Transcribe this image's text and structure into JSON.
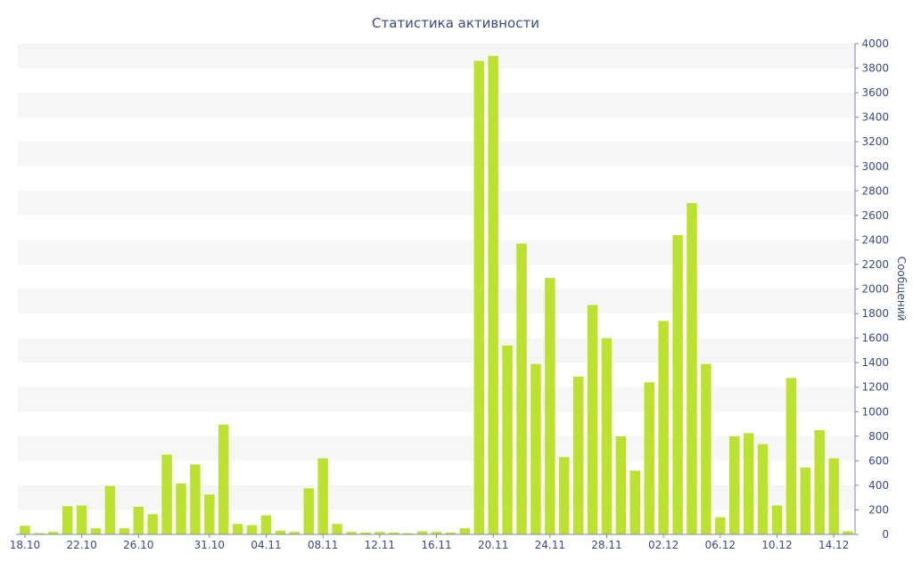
{
  "chart_data": {
    "type": "bar",
    "title": "Статистика активности",
    "ylabel": "Сообщений",
    "xlabel": "",
    "ylim": [
      0,
      4000
    ],
    "yticks": [
      0,
      200,
      400,
      600,
      800,
      1000,
      1200,
      1400,
      1600,
      1800,
      2000,
      2200,
      2400,
      2600,
      2800,
      3000,
      3200,
      3400,
      3600,
      3800,
      4000
    ],
    "y_axis_position": "right",
    "grid": "alternating horizontal bands",
    "legend": "none",
    "colors": {
      "bar": "#bce22f",
      "text": "#3b4a8a",
      "band": "#f6f6f6"
    },
    "xtick_labels": [
      "18.10",
      "22.10",
      "26.10",
      "31.10",
      "04.11",
      "08.11",
      "12.11",
      "16.11",
      "20.11",
      "24.11",
      "28.11",
      "02.12",
      "06.12",
      "10.12",
      "14.12"
    ],
    "values": [
      70,
      10,
      20,
      230,
      235,
      50,
      395,
      50,
      225,
      165,
      650,
      415,
      570,
      325,
      895,
      85,
      75,
      155,
      30,
      20,
      375,
      620,
      85,
      20,
      15,
      20,
      15,
      10,
      25,
      20,
      15,
      50,
      3860,
      3900,
      1540,
      2370,
      1390,
      2090,
      630,
      1285,
      1870,
      1600,
      800,
      520,
      1240,
      1740,
      2440,
      2700,
      1390,
      140,
      800,
      825,
      735,
      235,
      1275,
      545,
      850,
      620,
      25
    ]
  }
}
